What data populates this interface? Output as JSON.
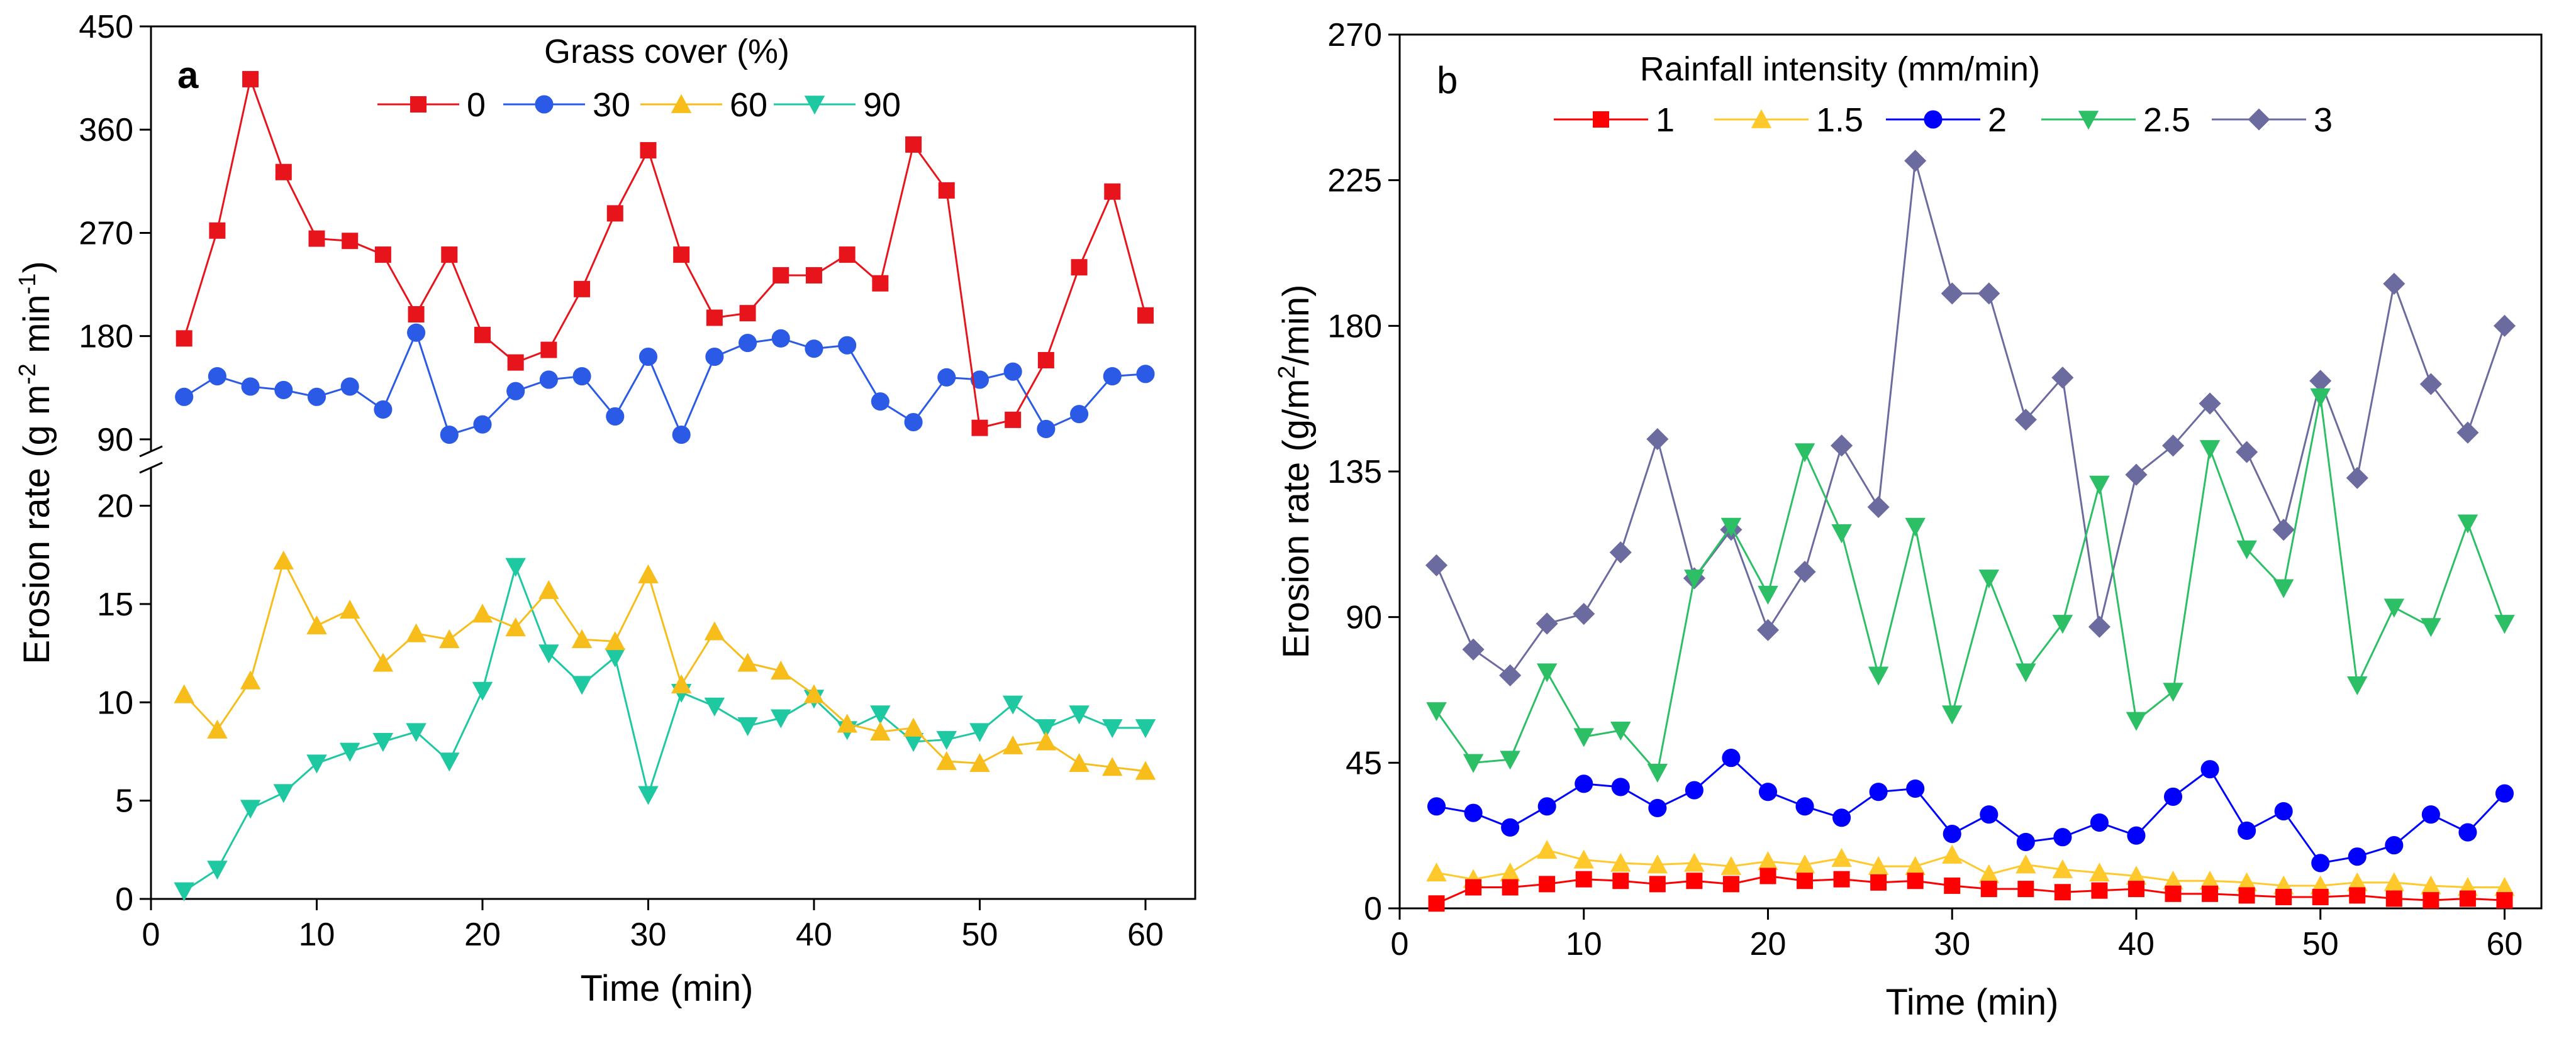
{
  "chart_data": [
    {
      "type": "line",
      "panel_label": "a",
      "xlabel": "Time (min)",
      "ylabel": "Erosion rate (g m-2 min-1)",
      "ylabel_parts": {
        "main": "Erosion rate (g m",
        "sup1": "-2",
        "mid": " min",
        "sup2": "-1",
        "end": ")"
      },
      "legend_title": "Grass cover (%)",
      "xlim": [
        0,
        63
      ],
      "xticks": [
        0,
        10,
        20,
        30,
        40,
        50,
        60
      ],
      "y_axis_break": {
        "upper": {
          "range": [
            85,
            450
          ],
          "ticks": [
            90,
            180,
            270,
            360,
            450
          ]
        },
        "lower": {
          "range": [
            0,
            22
          ],
          "ticks": [
            0,
            5,
            10,
            15,
            20
          ]
        }
      },
      "x": [
        2,
        4,
        6,
        8,
        10,
        12,
        14,
        16,
        18,
        20,
        22,
        24,
        26,
        28,
        30,
        32,
        34,
        36,
        38,
        40,
        42,
        44,
        46,
        48,
        50,
        52,
        54,
        56,
        58,
        60
      ],
      "series": [
        {
          "name": "0",
          "color": "#e8141c",
          "marker": "square",
          "segment": "upper",
          "values": [
            178,
            272,
            404,
            323,
            265,
            263,
            251,
            199,
            251,
            181,
            157,
            168,
            221,
            287,
            342,
            251,
            196,
            200,
            233,
            233,
            251,
            226,
            347,
            307,
            100,
            107,
            159,
            240,
            306,
            198
          ]
        },
        {
          "name": "30",
          "color": "#2b5be6",
          "marker": "circle",
          "segment": "upper",
          "values": [
            127,
            145,
            136,
            133,
            127,
            136,
            116,
            183,
            94,
            103,
            132,
            142,
            145,
            110,
            162,
            94,
            162,
            174,
            178,
            169,
            172,
            123,
            105,
            144,
            142,
            149,
            99,
            112,
            145,
            147
          ]
        },
        {
          "name": "60",
          "color": "#f7bd1b",
          "marker": "triangle-up",
          "segment": "lower",
          "values": [
            10.4,
            8.6,
            11.1,
            17.2,
            13.9,
            14.7,
            12.0,
            13.5,
            13.2,
            14.5,
            13.8,
            15.7,
            13.2,
            13.1,
            16.5,
            10.9,
            13.6,
            12.0,
            11.6,
            10.4,
            8.9,
            8.5,
            8.7,
            7.0,
            6.9,
            7.8,
            8.0,
            6.9,
            6.7,
            6.5
          ]
        },
        {
          "name": "90",
          "color": "#1ec8a0",
          "marker": "triangle-down",
          "segment": "lower",
          "values": [
            0.4,
            1.5,
            4.6,
            5.4,
            6.9,
            7.5,
            8.0,
            8.5,
            7.0,
            10.6,
            16.9,
            12.5,
            10.9,
            12.3,
            5.3,
            10.5,
            9.8,
            8.8,
            9.2,
            10.2,
            8.6,
            9.4,
            8.0,
            8.1,
            8.5,
            9.9,
            8.7,
            9.4,
            8.7,
            8.7
          ]
        }
      ]
    },
    {
      "type": "line",
      "panel_label": "b",
      "xlabel": "Time (min)",
      "ylabel": "Erosion rate (g/m2/min)",
      "ylabel_parts": {
        "main": "Erosion rate (g/m",
        "sup1": "2",
        "end": "/min)"
      },
      "legend_title": "Rainfall intensity (mm/min)",
      "xlim": [
        0,
        62
      ],
      "xticks": [
        0,
        10,
        20,
        30,
        40,
        50,
        60
      ],
      "ylim": [
        0,
        270
      ],
      "yticks": [
        0,
        45,
        90,
        135,
        180,
        225,
        270
      ],
      "x": [
        2,
        4,
        6,
        8,
        10,
        12,
        14,
        16,
        18,
        20,
        22,
        24,
        26,
        28,
        30,
        32,
        34,
        36,
        38,
        40,
        42,
        44,
        46,
        48,
        50,
        52,
        54,
        56,
        58,
        60
      ],
      "series": [
        {
          "name": "1",
          "color": "#ff0000",
          "marker": "square",
          "values": [
            1.5,
            6.5,
            6.5,
            7.5,
            9,
            8.5,
            7.5,
            8.5,
            7.5,
            10,
            8.5,
            9,
            8,
            8.5,
            7,
            6,
            6,
            5,
            5.5,
            6,
            4.5,
            4.5,
            4,
            3.5,
            3.5,
            4,
            3,
            2.5,
            3,
            2.5
          ]
        },
        {
          "name": "1.5",
          "color": "#ffc92b",
          "marker": "triangle-up",
          "values": [
            11,
            9,
            11,
            18,
            15,
            14,
            13.5,
            14,
            13,
            14.5,
            13.5,
            15.5,
            13,
            13,
            16.5,
            10.5,
            13.5,
            12,
            11,
            10,
            8.5,
            8.5,
            8,
            7,
            7,
            8,
            8,
            7,
            6.5,
            6.5
          ]
        },
        {
          "name": "2",
          "color": "#0000ff",
          "marker": "circle",
          "values": [
            31.5,
            29.5,
            25,
            31.5,
            38.5,
            37.5,
            31,
            36.5,
            46.5,
            36,
            31.5,
            28,
            36,
            37,
            23,
            29,
            20.5,
            22,
            26.5,
            22.5,
            34.5,
            43,
            24,
            30,
            14,
            16,
            19.5,
            29,
            23.5,
            35.5
          ]
        },
        {
          "name": "2.5",
          "color": "#2dbf65",
          "marker": "triangle-down",
          "values": [
            61,
            45,
            46,
            73,
            53,
            55,
            42,
            102,
            118,
            97,
            141,
            116,
            72,
            118,
            60,
            102,
            73,
            88,
            131,
            58,
            67,
            142,
            111,
            99,
            158,
            69,
            93,
            87,
            119,
            88
          ]
        },
        {
          "name": "3",
          "color": "#6b6b9f",
          "marker": "diamond",
          "values": [
            106,
            80,
            72,
            88,
            91,
            110,
            145,
            102,
            117,
            86,
            104,
            143,
            124,
            231,
            190,
            190,
            151,
            164,
            87,
            134,
            143,
            156,
            141,
            117,
            163,
            133,
            193,
            162,
            147,
            180
          ]
        }
      ]
    }
  ]
}
